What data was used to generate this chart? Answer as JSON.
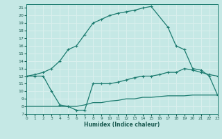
{
  "xlabel": "Humidex (Indice chaleur)",
  "xlim": [
    0,
    23
  ],
  "ylim": [
    7,
    21.5
  ],
  "xticks": [
    0,
    1,
    2,
    3,
    4,
    5,
    6,
    7,
    8,
    9,
    10,
    11,
    12,
    13,
    14,
    15,
    16,
    17,
    18,
    19,
    20,
    21,
    22,
    23
  ],
  "yticks": [
    7,
    8,
    9,
    10,
    11,
    12,
    13,
    14,
    15,
    16,
    17,
    18,
    19,
    20,
    21
  ],
  "bg_color": "#c5e8e5",
  "line_color": "#1a7a6e",
  "grid_color": "#daf0ee",
  "curve_upper_x": [
    0,
    1,
    2,
    3,
    4,
    5,
    6,
    7,
    8,
    9,
    10,
    11,
    12,
    13,
    14,
    15,
    17,
    18,
    19,
    20,
    21,
    22,
    23
  ],
  "curve_upper_y": [
    12,
    12.2,
    12.5,
    13.0,
    14.0,
    15.5,
    16.0,
    17.5,
    19.0,
    19.5,
    20.0,
    20.3,
    20.5,
    20.7,
    21.0,
    21.2,
    18.5,
    16.0,
    15.5,
    13.0,
    12.8,
    12.0,
    9.5
  ],
  "curve_mid_x": [
    0,
    1,
    2,
    3,
    4,
    5,
    6,
    7,
    8,
    9,
    10,
    11,
    12,
    13,
    14,
    15,
    16,
    17,
    18,
    19,
    20,
    21,
    22,
    23
  ],
  "curve_mid_y": [
    12.0,
    12.0,
    12.0,
    10.0,
    8.2,
    8.0,
    7.5,
    7.5,
    11.0,
    11.0,
    11.0,
    11.2,
    11.5,
    11.8,
    12.0,
    12.0,
    12.2,
    12.5,
    12.5,
    13.0,
    12.8,
    12.5,
    12.2,
    12.0
  ],
  "curve_lower_x": [
    0,
    1,
    2,
    3,
    4,
    5,
    6,
    7,
    8,
    9,
    10,
    11,
    12,
    13,
    14,
    15,
    16,
    17,
    18,
    19,
    20,
    21,
    22,
    23
  ],
  "curve_lower_y": [
    8.0,
    8.0,
    8.0,
    8.0,
    8.0,
    8.0,
    8.0,
    8.2,
    8.5,
    8.5,
    8.7,
    8.8,
    9.0,
    9.0,
    9.2,
    9.2,
    9.3,
    9.4,
    9.4,
    9.4,
    9.5,
    9.5,
    9.5,
    9.5
  ]
}
